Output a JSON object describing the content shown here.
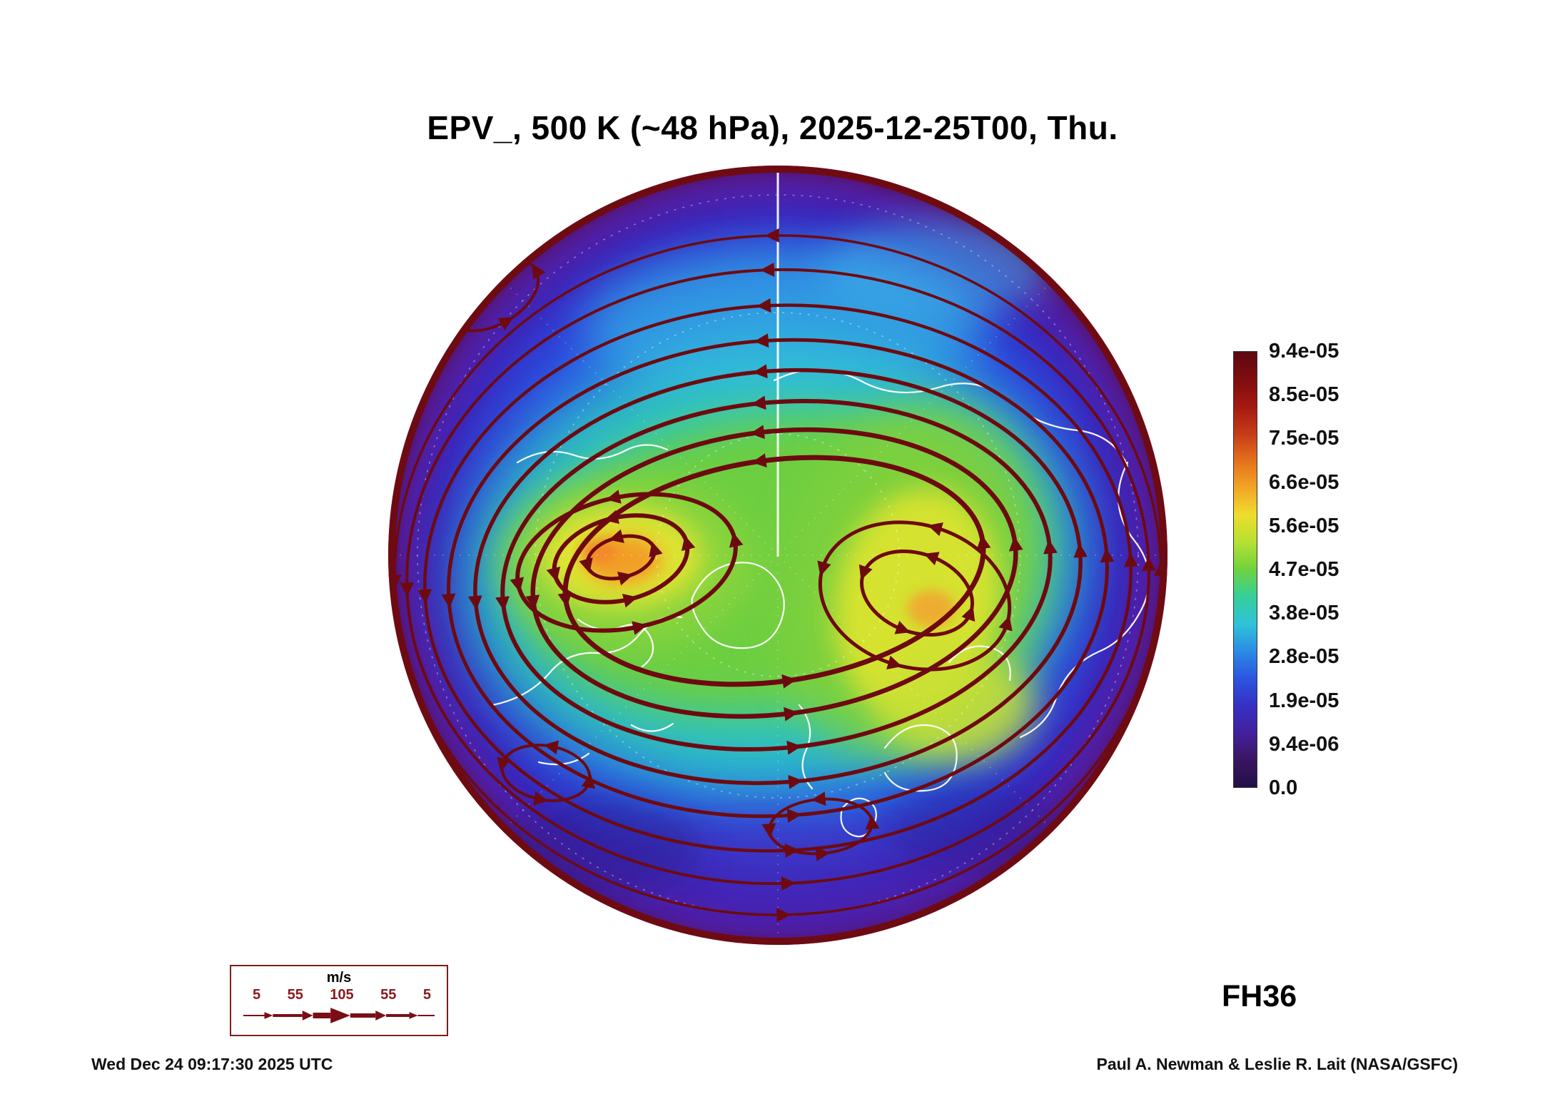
{
  "title": "EPV_, 500 K (~48 hPa), 2025-12-25T00, Thu.",
  "forecast_label": "FH36",
  "footer": {
    "timestamp": "Wed Dec 24 09:17:30 2025 UTC",
    "credit": "Paul A. Newman & Leslie R. Lait (NASA/GSFC)"
  },
  "colorbar": {
    "ticks": [
      "9.4e-05",
      "8.5e-05",
      "7.5e-05",
      "6.6e-05",
      "5.6e-05",
      "4.7e-05",
      "3.8e-05",
      "2.8e-05",
      "1.9e-05",
      "9.4e-06",
      "0.0"
    ],
    "colors_top_to_bottom": [
      "#5e0812",
      "#7e0d10",
      "#a41912",
      "#c63b16",
      "#e4701d",
      "#f2a526",
      "#eedd2d",
      "#b5e133",
      "#6fd23f",
      "#35cf9a",
      "#2fc3d8",
      "#2b8ce4",
      "#2b55e0",
      "#3530c4",
      "#44209e",
      "#3a1560",
      "#221045"
    ]
  },
  "wind_legend": {
    "units": "m/s",
    "speeds": [
      "5",
      "55",
      "105",
      "55",
      "5"
    ]
  },
  "chart_data": {
    "type": "heatmap",
    "title": "EPV_, 500 K (~48 hPa), 2025-12-25T00, Thu.",
    "field": "EPV_",
    "level": "500 K (~48 hPa)",
    "valid_time": "2025-12-25T00, Thu.",
    "forecast_hour_label": "FH36",
    "colorbar_levels": [
      0.0,
      9.4e-06,
      1.9e-05,
      2.8e-05,
      3.8e-05,
      4.7e-05,
      5.6e-05,
      6.6e-05,
      7.5e-05,
      8.5e-05,
      9.4e-05
    ],
    "colorbar_range": [
      0.0,
      9.4e-05
    ],
    "legend_position": "right",
    "projection": "north polar circular view",
    "overlays": [
      {
        "type": "wind streamlines",
        "legend_units": "m/s",
        "legend_speeds": [
          5,
          55,
          105,
          55,
          5
        ]
      },
      {
        "type": "coastlines"
      },
      {
        "type": "latitude-longitude graticule"
      }
    ],
    "annotations": [
      "FH36",
      "Wed Dec 24 09:17:30 2025 UTC",
      "Paul A. Newman & Leslie R. Lait (NASA/GSFC)"
    ]
  }
}
